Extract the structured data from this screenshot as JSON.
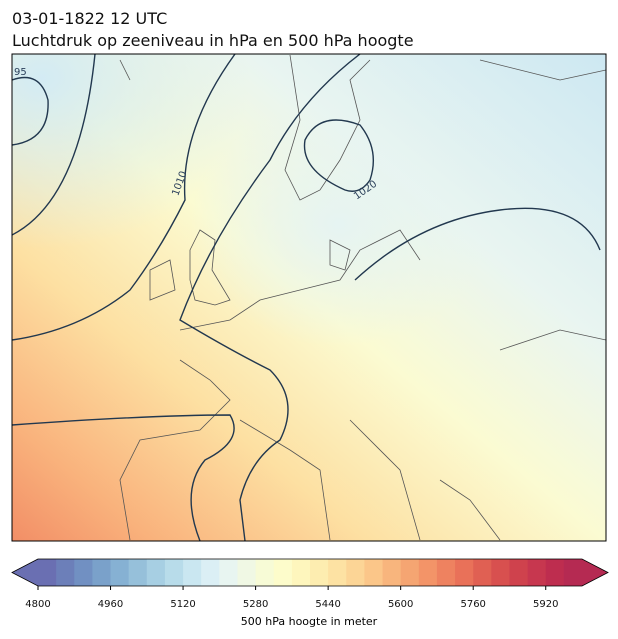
{
  "header": {
    "title": "03-01-1822 12 UTC",
    "subtitle": "Luchtdruk op zeeniveau in hPa en 500 hPa hoogte"
  },
  "map": {
    "contour_labels": [
      "95",
      "1010",
      "1020"
    ]
  },
  "colorbar": {
    "label": "500 hPa hoogte in meter",
    "range": [
      4800,
      6000
    ],
    "ticks": [
      4800,
      4960,
      5120,
      5280,
      5440,
      5600,
      5760,
      5920
    ],
    "colors": [
      "#6a6fb2",
      "#6c7fb9",
      "#7190c2",
      "#7aa1ca",
      "#86b1d3",
      "#96c0da",
      "#a7cfe3",
      "#b8dcea",
      "#cae7f1",
      "#dbeff5",
      "#e8f5f1",
      "#f0f8e4",
      "#f7fbd6",
      "#fdfccb",
      "#fef6bd",
      "#fdedb0",
      "#fde2a3",
      "#fcd596",
      "#fbc689",
      "#f8b57d",
      "#f5a572",
      "#f39468",
      "#ee8260",
      "#e97159",
      "#e06053",
      "#d8504f",
      "#cf424d",
      "#c7374f",
      "#be2d4f",
      "#b52a52"
    ]
  }
}
